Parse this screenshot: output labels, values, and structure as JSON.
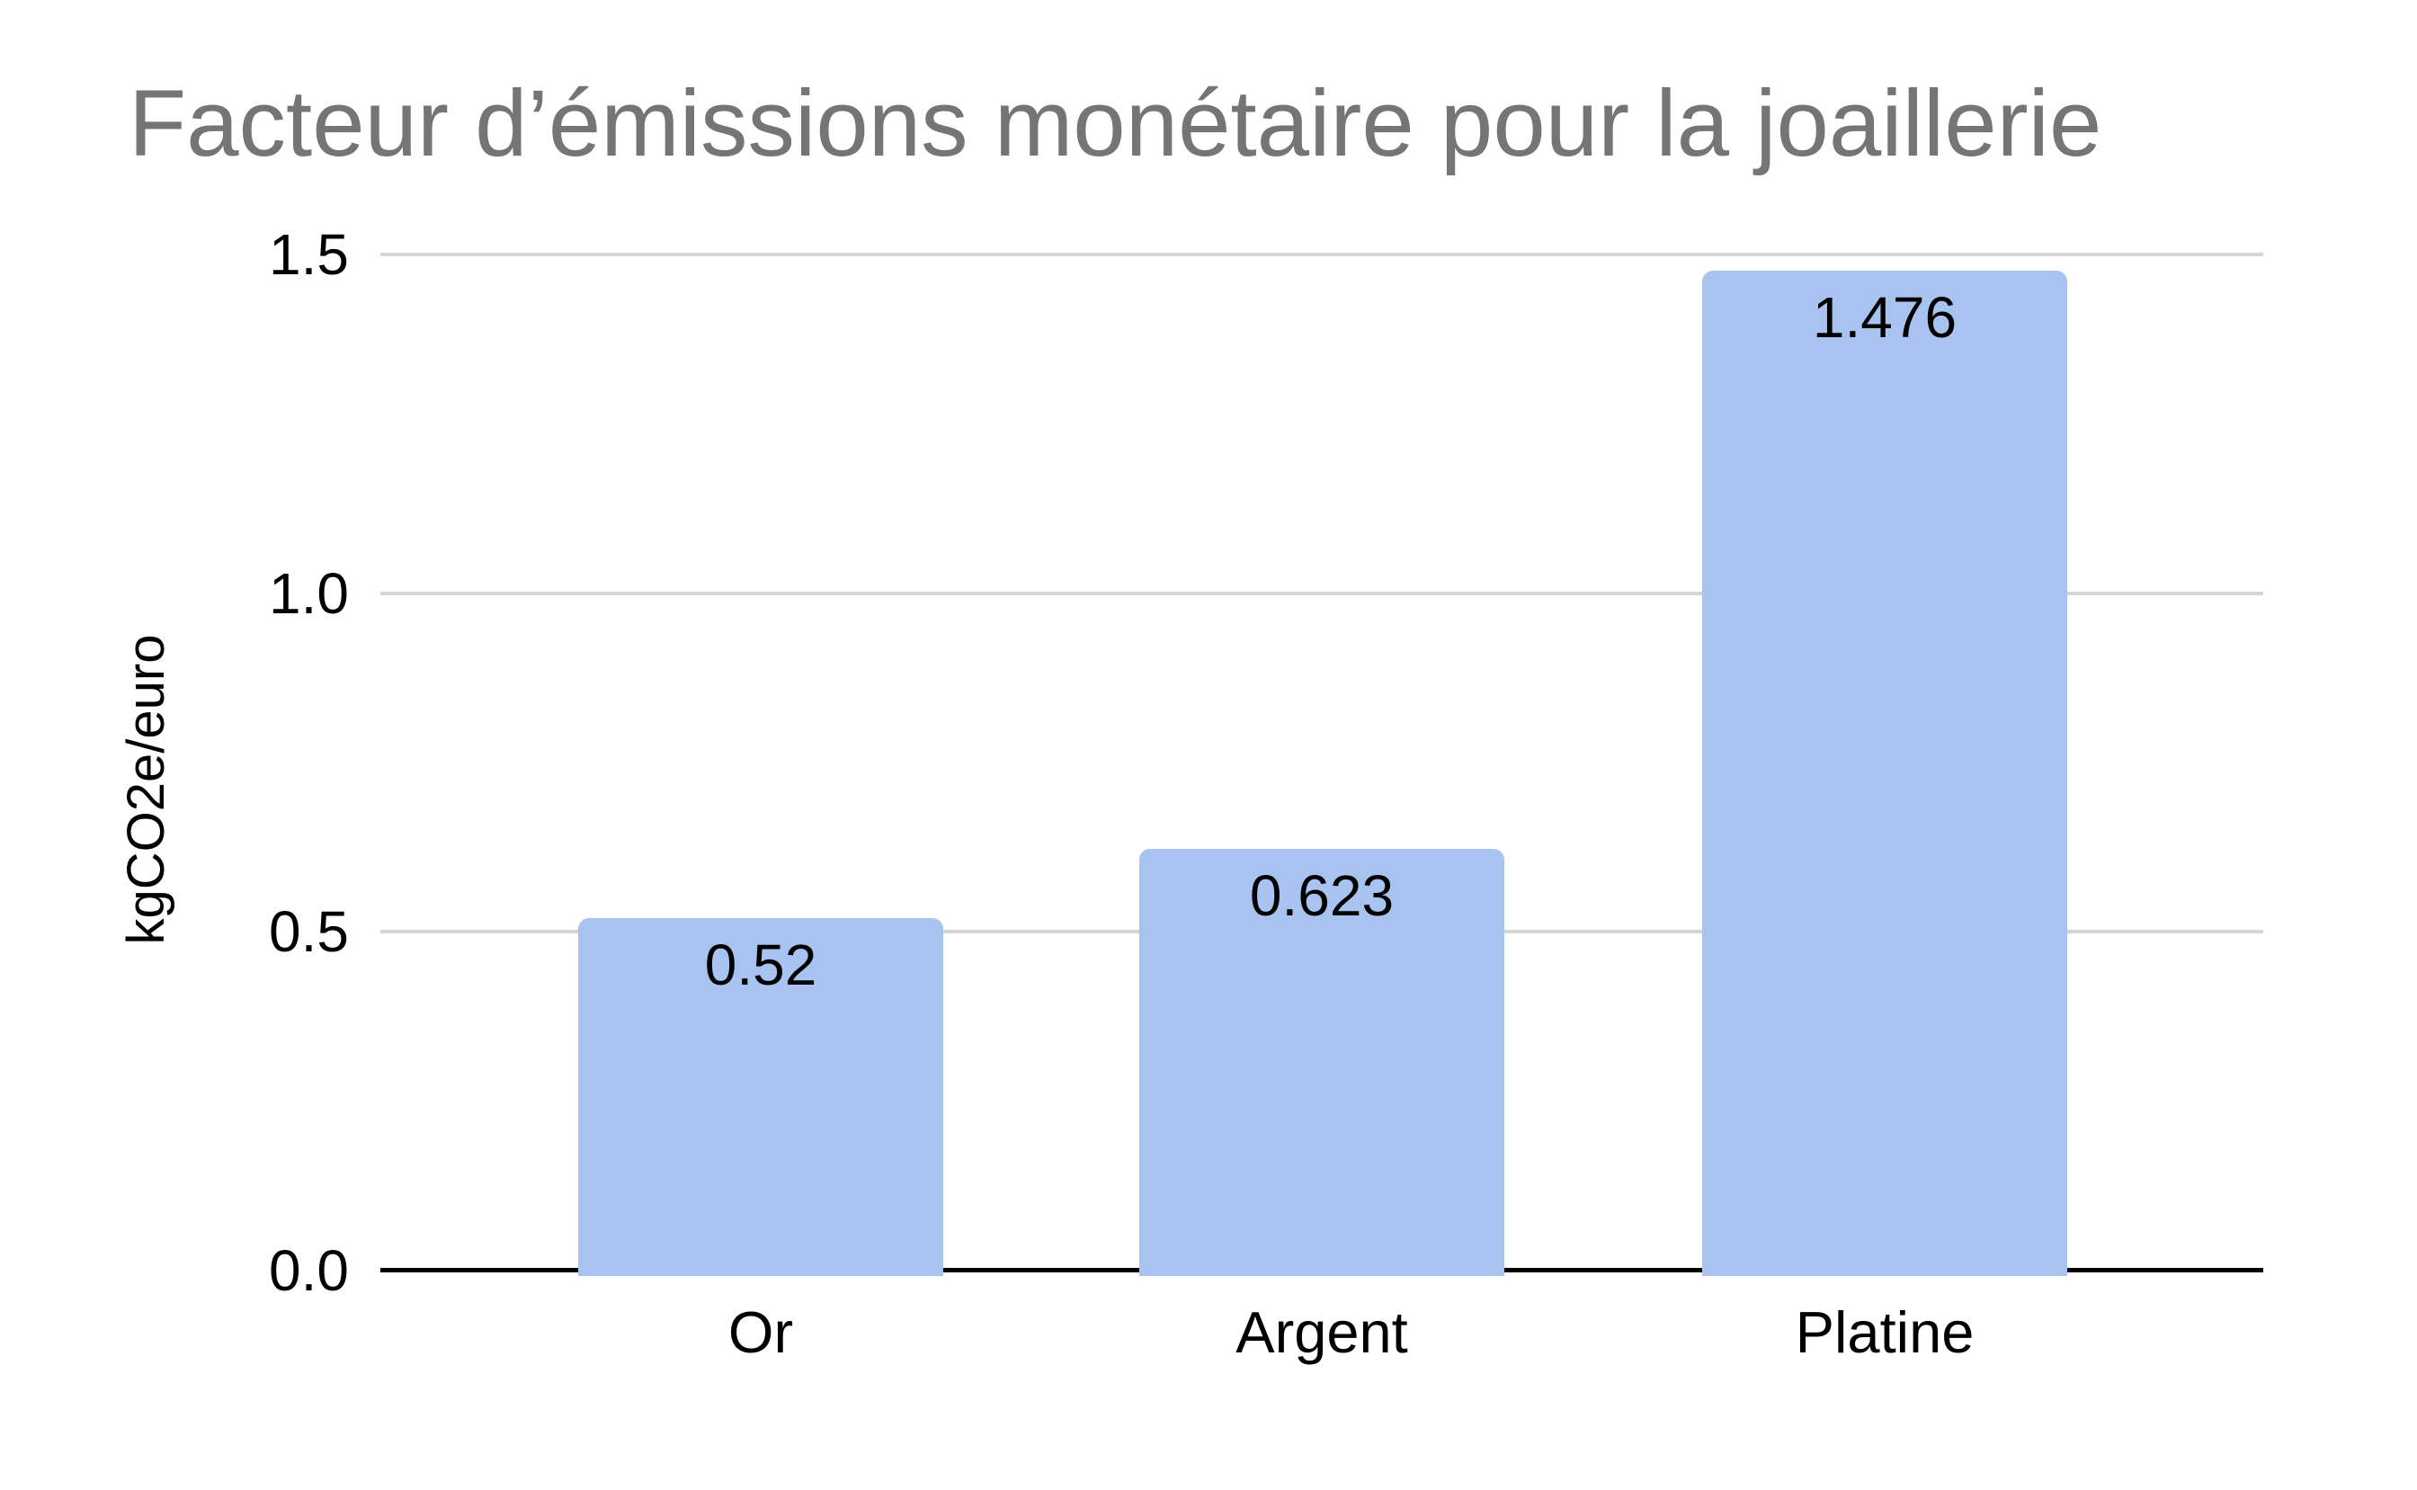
{
  "chart_data": {
    "type": "bar",
    "title": "Facteur d’émissions monétaire pour la joaillerie",
    "title_color": "#757575",
    "categories": [
      "Or",
      "Argent",
      "Platine"
    ],
    "values": [
      0.52,
      0.623,
      1.476
    ],
    "value_labels": [
      "0.52",
      "0.623",
      "1.476"
    ],
    "xlabel": "",
    "ylabel": "kgCO2e/euro",
    "ylim": [
      0,
      1.5
    ],
    "yticks": [
      0.0,
      0.5,
      1.0,
      1.5
    ],
    "ytick_labels": [
      "0.0",
      "0.5",
      "1.0",
      "1.5"
    ],
    "grid": true,
    "legend": "none",
    "bar_color": "#a8c3ef",
    "gridline_color": "#d5d5d5",
    "axis_line_color": "#000000",
    "label_color": "#000000",
    "background_color": "#ffffff"
  }
}
